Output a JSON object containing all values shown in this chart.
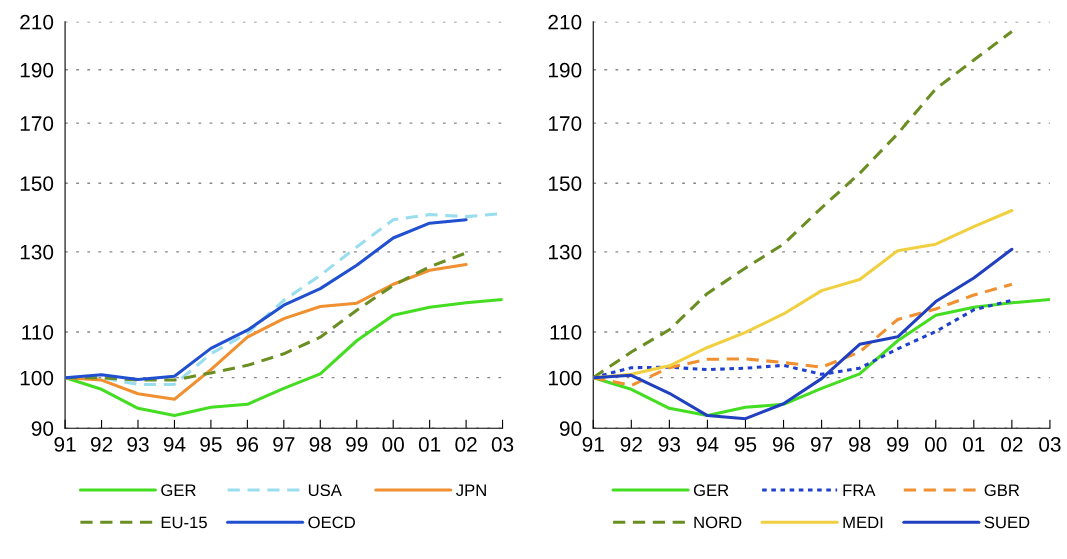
{
  "chart_data": [
    {
      "type": "line",
      "categories": [
        "91",
        "92",
        "93",
        "94",
        "95",
        "96",
        "97",
        "98",
        "99",
        "00",
        "01",
        "02",
        "03"
      ],
      "ylim": [
        90,
        210
      ],
      "yticks": [
        90,
        100,
        110,
        130,
        150,
        170,
        190,
        210
      ],
      "log": true,
      "grid": "y",
      "legend": "bottom",
      "series": [
        {
          "name": "GER",
          "color": "#44dd22",
          "line_style": "solid",
          "values": [
            100,
            97.6,
            93.8,
            92.4,
            94.0,
            94.6,
            97.8,
            100.8,
            108.0,
            113.9,
            115.8,
            116.9,
            117.7
          ]
        },
        {
          "name": "USA",
          "color": "#99ddee",
          "line_style": "dashed",
          "values": [
            100,
            100,
            98.6,
            98.6,
            105.1,
            109.7,
            117.5,
            123.8,
            131.3,
            139.0,
            140.5,
            139.9,
            140.8
          ]
        },
        {
          "name": "JPN",
          "color": "#f09030",
          "line_style": "solid",
          "values": [
            100,
            99.5,
            96.7,
            95.6,
            101.7,
            108.8,
            113.1,
            116.0,
            116.8,
            121.5,
            125.1,
            126.6,
            null
          ]
        },
        {
          "name": "EU-15",
          "color": "#6b8e23",
          "line_style": "dashed",
          "values": [
            100,
            100.0,
            99.5,
            99.5,
            101.0,
            102.6,
            105.1,
            108.8,
            115.1,
            121.2,
            126.0,
            129.7,
            null
          ]
        },
        {
          "name": "OECD",
          "color": "#2050d0",
          "line_style": "solid",
          "values": [
            100,
            100.6,
            99.6,
            100.3,
            106.3,
            110.4,
            116.3,
            120.4,
            126.4,
            133.8,
            138.0,
            139.0,
            null
          ]
        }
      ]
    },
    {
      "type": "line",
      "categories": [
        "91",
        "92",
        "93",
        "94",
        "95",
        "96",
        "97",
        "98",
        "99",
        "00",
        "01",
        "02",
        "03"
      ],
      "ylim": [
        90,
        210
      ],
      "yticks": [
        90,
        100,
        110,
        130,
        150,
        170,
        190,
        210
      ],
      "log": true,
      "grid": "y",
      "legend": "bottom",
      "series": [
        {
          "name": "GER",
          "color": "#44dd22",
          "line_style": "solid",
          "values": [
            100,
            97.6,
            93.8,
            92.4,
            94.0,
            94.6,
            97.8,
            100.8,
            108.0,
            113.9,
            115.8,
            116.9,
            117.7
          ]
        },
        {
          "name": "FRA",
          "color": "#2040d0",
          "line_style": "dotted",
          "values": [
            100,
            102.1,
            102.2,
            101.7,
            102.0,
            102.6,
            100.7,
            102.0,
            106.2,
            110.1,
            115.2,
            117.5,
            null
          ]
        },
        {
          "name": "GBR",
          "color": "#f09030",
          "line_style": "dashed",
          "values": [
            100,
            98.4,
            102.1,
            103.9,
            104.0,
            103.2,
            102.2,
            105.5,
            112.9,
            115.4,
            118.8,
            121.5,
            null
          ]
        },
        {
          "name": "NORD",
          "color": "#6b8e23",
          "line_style": "dashed",
          "values": [
            100,
            105.5,
            110.5,
            119.2,
            125.7,
            132.1,
            142.5,
            153.1,
            166.3,
            182.6,
            193.9,
            205.8,
            null
          ]
        },
        {
          "name": "MEDI",
          "color": "#f0d040",
          "line_style": "solid",
          "values": [
            100,
            100.7,
            102.5,
            106.5,
            109.9,
            114.2,
            119.9,
            122.7,
            130.3,
            132.1,
            137.0,
            141.7,
            null
          ]
        },
        {
          "name": "SUED",
          "color": "#2040c0",
          "line_style": "solid",
          "values": [
            100,
            100.5,
            96.8,
            92.4,
            91.8,
            94.7,
            99.8,
            107.2,
            108.9,
            117.2,
            123.1,
            130.7,
            null
          ]
        }
      ]
    }
  ]
}
